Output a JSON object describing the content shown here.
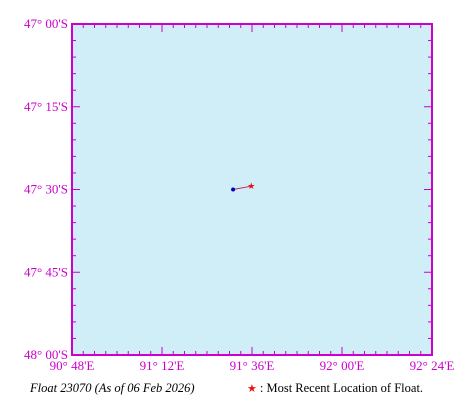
{
  "map": {
    "ocean_color": "#d0eef8",
    "frame_color": "#cc00cc",
    "lon_range": [
      90.8,
      92.4
    ],
    "lat_range": [
      -48.0,
      -47.0
    ],
    "x_ticks": [
      {
        "value": 90.8,
        "label": "90° 48'E"
      },
      {
        "value": 91.2,
        "label": "91° 12'E"
      },
      {
        "value": 91.6,
        "label": "91° 36'E"
      },
      {
        "value": 92.0,
        "label": "92° 00'E"
      },
      {
        "value": 92.4,
        "label": "92° 24'E"
      }
    ],
    "y_ticks": [
      {
        "value": -47.0,
        "label": "47° 00'S"
      },
      {
        "value": -47.25,
        "label": "47° 15'S"
      },
      {
        "value": -47.5,
        "label": "47° 30'S"
      },
      {
        "value": -47.75,
        "label": "47° 45'S"
      },
      {
        "value": -48.0,
        "label": "48° 00'S"
      }
    ],
    "track": {
      "color": "#cc2255",
      "start_color": "#0000cc",
      "recent_color": "#ee1111",
      "points": [
        {
          "lon": 91.516,
          "lat": -47.5
        },
        {
          "lon": 91.597,
          "lat": -47.49
        }
      ]
    }
  },
  "caption": {
    "float_label": "Float 23070 (As of 06 Feb 2026)",
    "legend_star": "★",
    "legend_text": ": Most Recent Location of Float."
  }
}
